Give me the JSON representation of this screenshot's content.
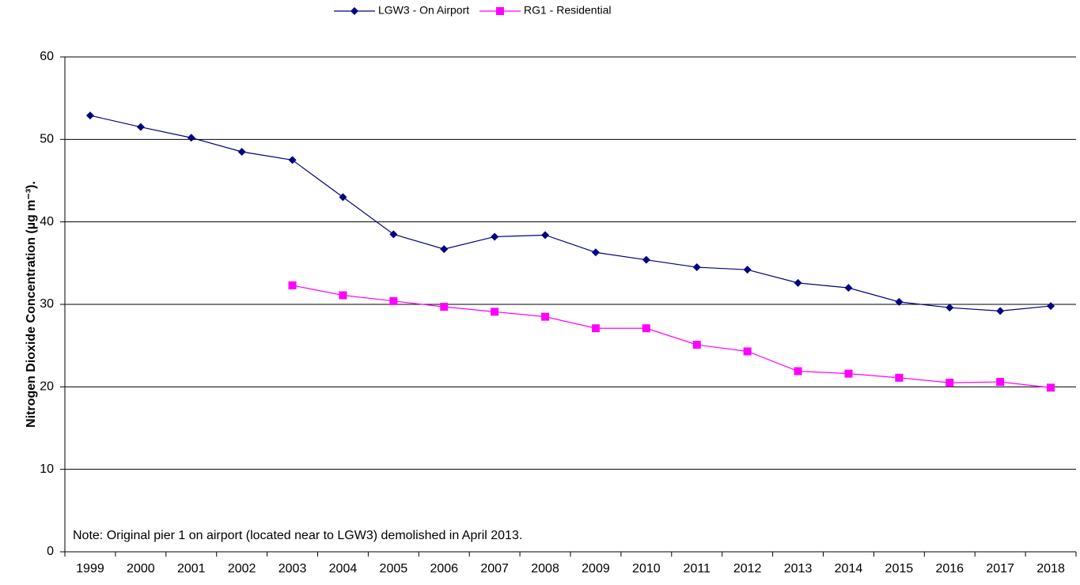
{
  "chart_data": {
    "type": "line",
    "y_label": "Nitrogen Dioxide Concentration (µg m⁻³).",
    "note": "Note: Original pier 1 on airport (located near to LGW3) demolished in April 2013.",
    "categories": [
      "1999",
      "2000",
      "2001",
      "2002",
      "2003",
      "2004",
      "2005",
      "2006",
      "2007",
      "2008",
      "2009",
      "2010",
      "2011",
      "2012",
      "2013",
      "2014",
      "2015",
      "2016",
      "2017",
      "2018"
    ],
    "series": [
      {
        "name": "LGW3 - On Airport",
        "color": "#000080",
        "marker": "diamond",
        "values": [
          52.9,
          51.5,
          50.2,
          48.5,
          47.5,
          43.0,
          38.5,
          36.7,
          38.2,
          38.4,
          36.3,
          35.4,
          34.5,
          34.2,
          32.6,
          32.0,
          30.3,
          29.6,
          29.2,
          29.8
        ]
      },
      {
        "name": "RG1 - Residential",
        "color": "#ff00ff",
        "marker": "square",
        "values": [
          null,
          null,
          null,
          null,
          32.3,
          31.1,
          30.4,
          29.7,
          29.1,
          28.5,
          27.1,
          27.1,
          25.1,
          24.3,
          21.9,
          21.6,
          21.1,
          20.5,
          20.6,
          19.9
        ]
      }
    ],
    "ylim": [
      0,
      60
    ],
    "yticks": [
      0,
      10,
      20,
      30,
      40,
      50,
      60
    ],
    "grid": true,
    "legend": "top"
  }
}
